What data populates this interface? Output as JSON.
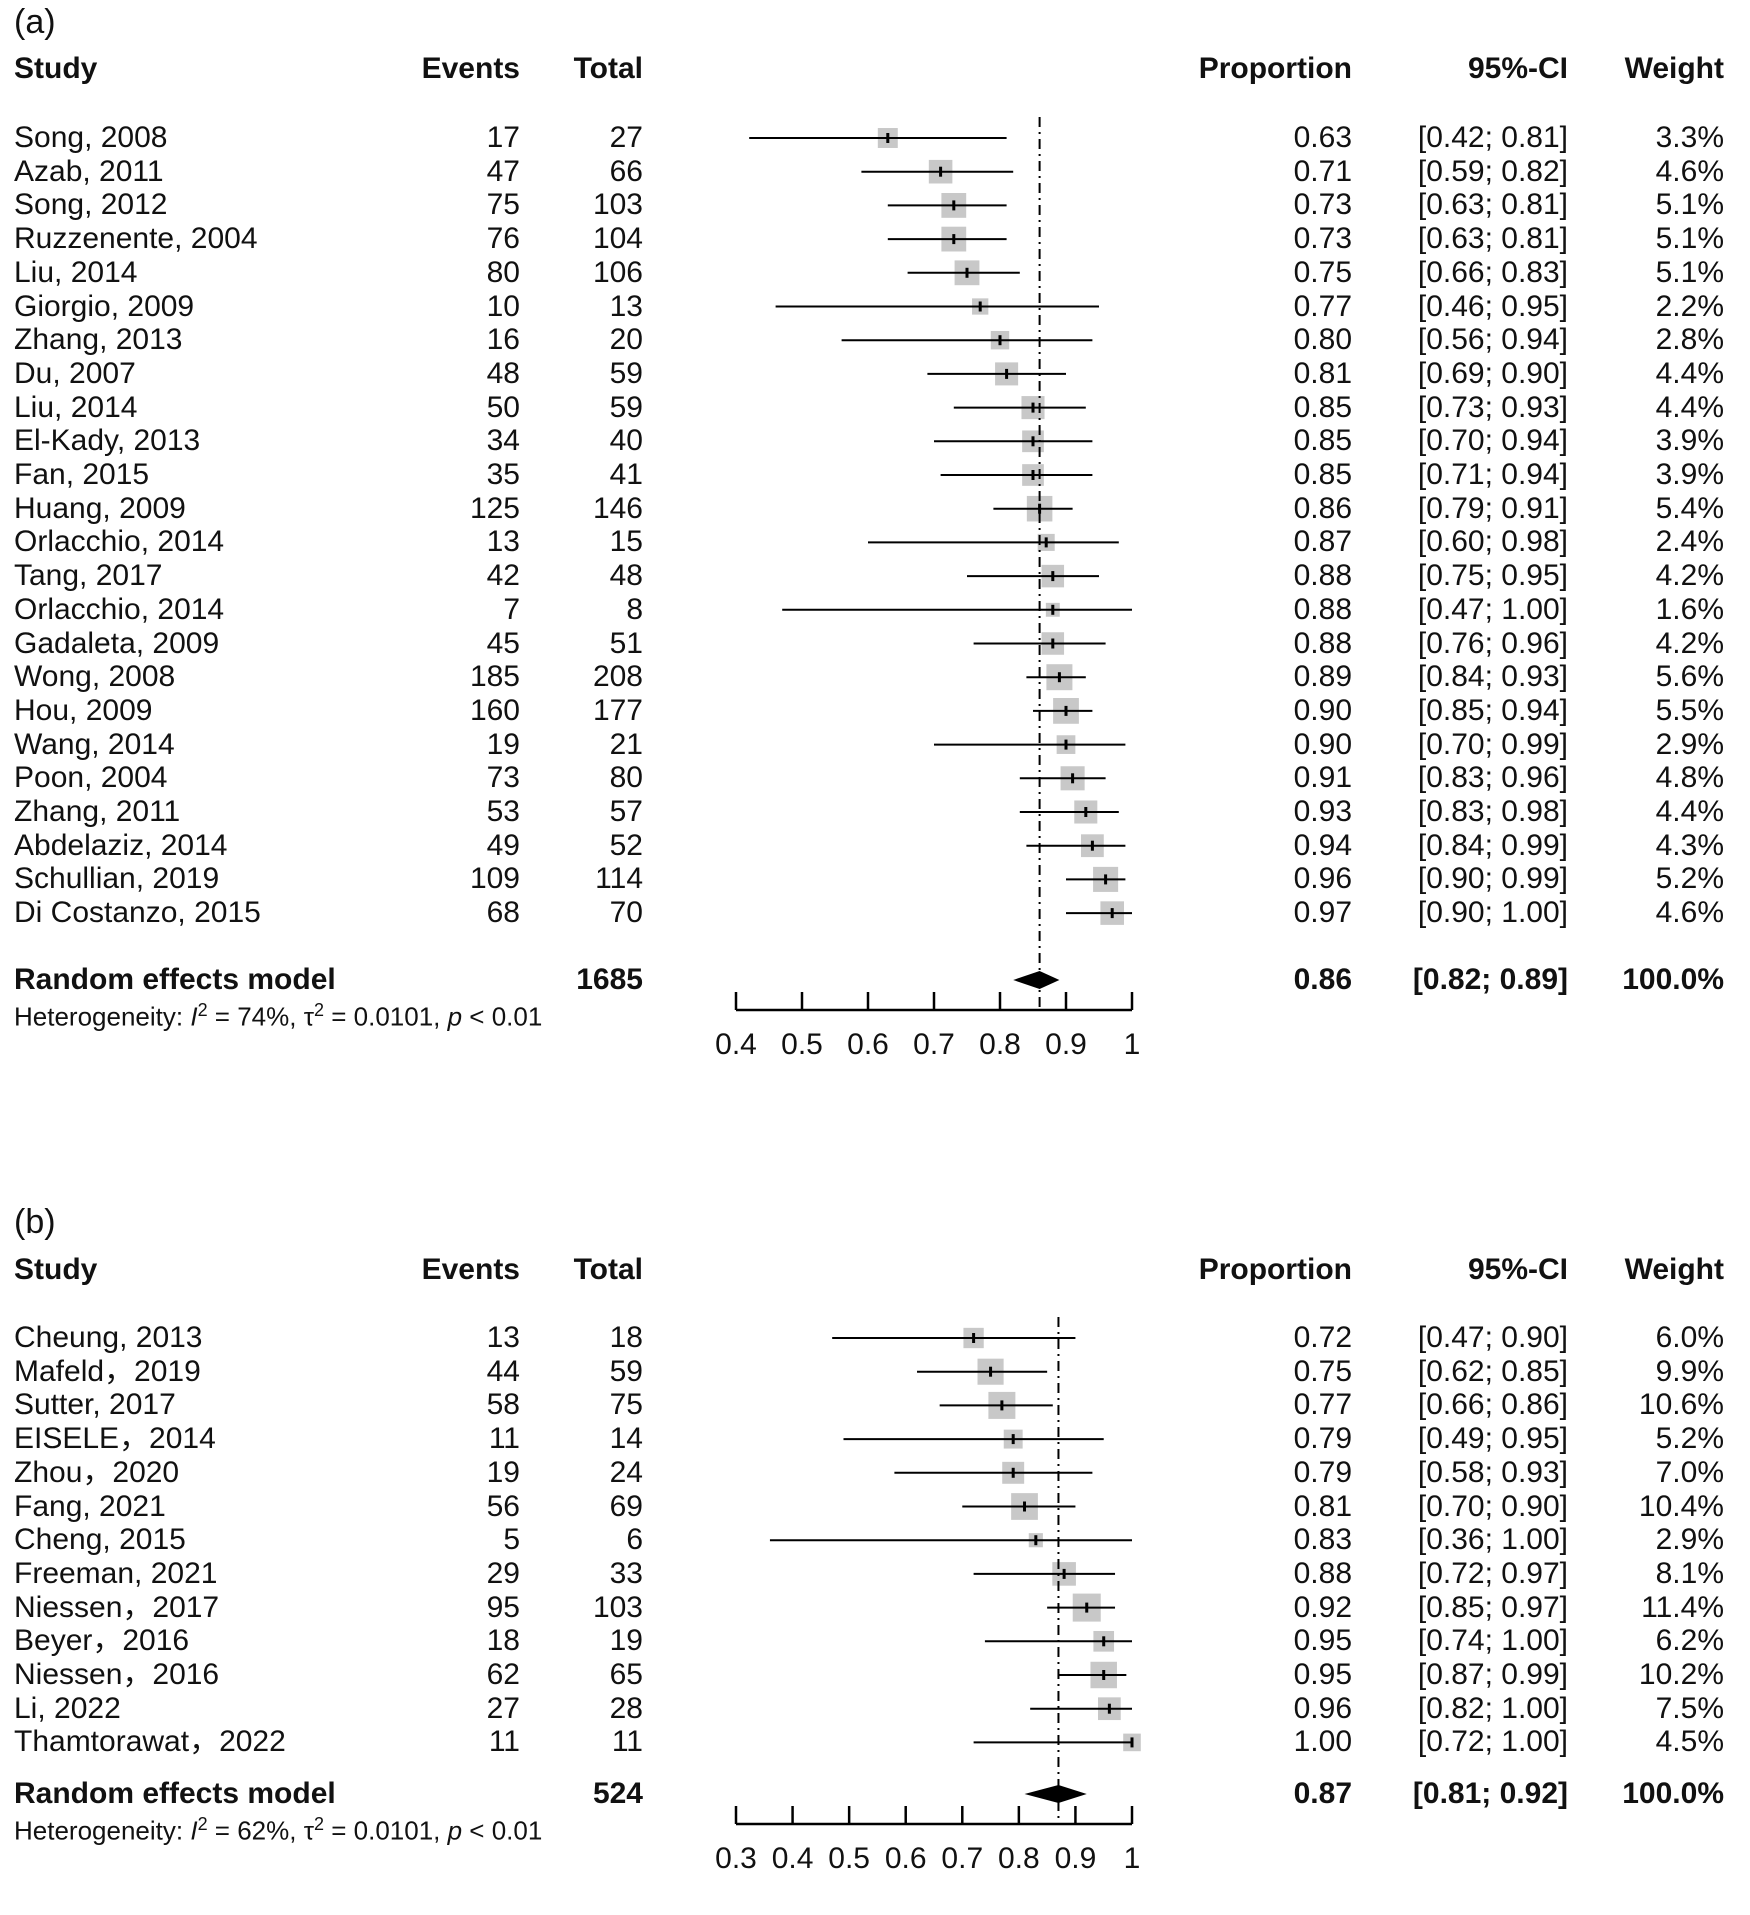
{
  "chart_data": [
    {
      "type": "forest",
      "panel_label": "(a)",
      "headers": {
        "study": "Study",
        "events": "Events",
        "total": "Total",
        "proportion": "Proportion",
        "ci": "95%-CI",
        "weight": "Weight"
      },
      "studies": [
        {
          "study": "Song, 2008",
          "events": "17",
          "total": "27",
          "proportion": "0.63",
          "ci": "[0.42; 0.81]",
          "weight": "3.3%",
          "est": 0.63,
          "lo": 0.42,
          "hi": 0.81,
          "w": 3.3
        },
        {
          "study": "Azab, 2011",
          "events": "47",
          "total": "66",
          "proportion": "0.71",
          "ci": "[0.59; 0.82]",
          "weight": "4.6%",
          "est": 0.71,
          "lo": 0.59,
          "hi": 0.82,
          "w": 4.6
        },
        {
          "study": "Song, 2012",
          "events": "75",
          "total": "103",
          "proportion": "0.73",
          "ci": "[0.63; 0.81]",
          "weight": "5.1%",
          "est": 0.73,
          "lo": 0.63,
          "hi": 0.81,
          "w": 5.1
        },
        {
          "study": "Ruzzenente, 2004",
          "events": "76",
          "total": "104",
          "proportion": "0.73",
          "ci": "[0.63; 0.81]",
          "weight": "5.1%",
          "est": 0.73,
          "lo": 0.63,
          "hi": 0.81,
          "w": 5.1
        },
        {
          "study": "Liu, 2014",
          "events": "80",
          "total": "106",
          "proportion": "0.75",
          "ci": "[0.66; 0.83]",
          "weight": "5.1%",
          "est": 0.75,
          "lo": 0.66,
          "hi": 0.83,
          "w": 5.1
        },
        {
          "study": "Giorgio, 2009",
          "events": "10",
          "total": "13",
          "proportion": "0.77",
          "ci": "[0.46; 0.95]",
          "weight": "2.2%",
          "est": 0.77,
          "lo": 0.46,
          "hi": 0.95,
          "w": 2.2
        },
        {
          "study": "Zhang, 2013",
          "events": "16",
          "total": "20",
          "proportion": "0.80",
          "ci": "[0.56; 0.94]",
          "weight": "2.8%",
          "est": 0.8,
          "lo": 0.56,
          "hi": 0.94,
          "w": 2.8
        },
        {
          "study": "Du, 2007",
          "events": "48",
          "total": "59",
          "proportion": "0.81",
          "ci": "[0.69; 0.90]",
          "weight": "4.4%",
          "est": 0.81,
          "lo": 0.69,
          "hi": 0.9,
          "w": 4.4
        },
        {
          "study": "Liu, 2014",
          "events": "50",
          "total": "59",
          "proportion": "0.85",
          "ci": "[0.73; 0.93]",
          "weight": "4.4%",
          "est": 0.85,
          "lo": 0.73,
          "hi": 0.93,
          "w": 4.4
        },
        {
          "study": "El-Kady, 2013",
          "events": "34",
          "total": "40",
          "proportion": "0.85",
          "ci": "[0.70; 0.94]",
          "weight": "3.9%",
          "est": 0.85,
          "lo": 0.7,
          "hi": 0.94,
          "w": 3.9
        },
        {
          "study": "Fan, 2015",
          "events": "35",
          "total": "41",
          "proportion": "0.85",
          "ci": "[0.71; 0.94]",
          "weight": "3.9%",
          "est": 0.85,
          "lo": 0.71,
          "hi": 0.94,
          "w": 3.9
        },
        {
          "study": "Huang, 2009",
          "events": "125",
          "total": "146",
          "proportion": "0.86",
          "ci": "[0.79; 0.91]",
          "weight": "5.4%",
          "est": 0.86,
          "lo": 0.79,
          "hi": 0.91,
          "w": 5.4
        },
        {
          "study": "Orlacchio, 2014",
          "events": "13",
          "total": "15",
          "proportion": "0.87",
          "ci": "[0.60; 0.98]",
          "weight": "2.4%",
          "est": 0.87,
          "lo": 0.6,
          "hi": 0.98,
          "w": 2.4
        },
        {
          "study": "Tang, 2017",
          "events": "42",
          "total": "48",
          "proportion": "0.88",
          "ci": "[0.75; 0.95]",
          "weight": "4.2%",
          "est": 0.88,
          "lo": 0.75,
          "hi": 0.95,
          "w": 4.2
        },
        {
          "study": "Orlacchio, 2014",
          "events": "7",
          "total": "8",
          "proportion": "0.88",
          "ci": "[0.47; 1.00]",
          "weight": "1.6%",
          "est": 0.88,
          "lo": 0.47,
          "hi": 1.0,
          "w": 1.6
        },
        {
          "study": "Gadaleta, 2009",
          "events": "45",
          "total": "51",
          "proportion": "0.88",
          "ci": "[0.76; 0.96]",
          "weight": "4.2%",
          "est": 0.88,
          "lo": 0.76,
          "hi": 0.96,
          "w": 4.2
        },
        {
          "study": "Wong, 2008",
          "events": "185",
          "total": "208",
          "proportion": "0.89",
          "ci": "[0.84; 0.93]",
          "weight": "5.6%",
          "est": 0.89,
          "lo": 0.84,
          "hi": 0.93,
          "w": 5.6
        },
        {
          "study": "Hou, 2009",
          "events": "160",
          "total": "177",
          "proportion": "0.90",
          "ci": "[0.85; 0.94]",
          "weight": "5.5%",
          "est": 0.9,
          "lo": 0.85,
          "hi": 0.94,
          "w": 5.5
        },
        {
          "study": "Wang, 2014",
          "events": "19",
          "total": "21",
          "proportion": "0.90",
          "ci": "[0.70; 0.99]",
          "weight": "2.9%",
          "est": 0.9,
          "lo": 0.7,
          "hi": 0.99,
          "w": 2.9
        },
        {
          "study": "Poon, 2004",
          "events": "73",
          "total": "80",
          "proportion": "0.91",
          "ci": "[0.83; 0.96]",
          "weight": "4.8%",
          "est": 0.91,
          "lo": 0.83,
          "hi": 0.96,
          "w": 4.8
        },
        {
          "study": "Zhang, 2011",
          "events": "53",
          "total": "57",
          "proportion": "0.93",
          "ci": "[0.83; 0.98]",
          "weight": "4.4%",
          "est": 0.93,
          "lo": 0.83,
          "hi": 0.98,
          "w": 4.4
        },
        {
          "study": "Abdelaziz, 2014",
          "events": "49",
          "total": "52",
          "proportion": "0.94",
          "ci": "[0.84; 0.99]",
          "weight": "4.3%",
          "est": 0.94,
          "lo": 0.84,
          "hi": 0.99,
          "w": 4.3
        },
        {
          "study": "Schullian, 2019",
          "events": "109",
          "total": "114",
          "proportion": "0.96",
          "ci": "[0.90; 0.99]",
          "weight": "5.2%",
          "est": 0.96,
          "lo": 0.9,
          "hi": 0.99,
          "w": 5.2
        },
        {
          "study": "Di Costanzo, 2015",
          "events": "68",
          "total": "70",
          "proportion": "0.97",
          "ci": "[0.90; 1.00]",
          "weight": "4.6%",
          "est": 0.97,
          "lo": 0.9,
          "hi": 1.0,
          "w": 4.6
        }
      ],
      "pooled": {
        "label": "Random effects model",
        "total": "1685",
        "proportion": "0.86",
        "ci": "[0.82; 0.89]",
        "weight": "100.0%",
        "est": 0.86,
        "lo": 0.82,
        "hi": 0.89
      },
      "heterogeneity": {
        "prefix": "Heterogeneity: ",
        "i2_symbol": "I",
        "i2_value": " = 74%, ",
        "tau2_symbol": "τ",
        "tau2_value": " = 0.0101, ",
        "p_symbol": "p",
        "p_value": " < 0.01",
        "sup": "2"
      },
      "xaxis": {
        "min": 0.4,
        "max": 1.0,
        "ticks": [
          0.4,
          0.5,
          0.6,
          0.7,
          0.8,
          0.9,
          1.0
        ],
        "tick_labels": [
          "0.4",
          "0.5",
          "0.6",
          "0.7",
          "0.8",
          "0.9",
          "1"
        ]
      }
    },
    {
      "type": "forest",
      "panel_label": "(b)",
      "headers": {
        "study": "Study",
        "events": "Events",
        "total": "Total",
        "proportion": "Proportion",
        "ci": "95%-CI",
        "weight": "Weight"
      },
      "studies": [
        {
          "study": "Cheung, 2013",
          "events": "13",
          "total": "18",
          "proportion": "0.72",
          "ci": "[0.47; 0.90]",
          "weight": "6.0%",
          "est": 0.72,
          "lo": 0.47,
          "hi": 0.9,
          "w": 6.0
        },
        {
          "study": "Mafeld，2019",
          "events": "44",
          "total": "59",
          "proportion": "0.75",
          "ci": "[0.62; 0.85]",
          "weight": "9.9%",
          "est": 0.75,
          "lo": 0.62,
          "hi": 0.85,
          "w": 9.9
        },
        {
          "study": "Sutter, 2017",
          "events": "58",
          "total": "75",
          "proportion": "0.77",
          "ci": "[0.66; 0.86]",
          "weight": "10.6%",
          "est": 0.77,
          "lo": 0.66,
          "hi": 0.86,
          "w": 10.6
        },
        {
          "study": "EISELE，2014",
          "events": "11",
          "total": "14",
          "proportion": "0.79",
          "ci": "[0.49; 0.95]",
          "weight": "5.2%",
          "est": 0.79,
          "lo": 0.49,
          "hi": 0.95,
          "w": 5.2
        },
        {
          "study": "Zhou，2020",
          "events": "19",
          "total": "24",
          "proportion": "0.79",
          "ci": "[0.58; 0.93]",
          "weight": "7.0%",
          "est": 0.79,
          "lo": 0.58,
          "hi": 0.93,
          "w": 7.0
        },
        {
          "study": "Fang, 2021",
          "events": "56",
          "total": "69",
          "proportion": "0.81",
          "ci": "[0.70; 0.90]",
          "weight": "10.4%",
          "est": 0.81,
          "lo": 0.7,
          "hi": 0.9,
          "w": 10.4
        },
        {
          "study": "Cheng, 2015",
          "events": "5",
          "total": "6",
          "proportion": "0.83",
          "ci": "[0.36; 1.00]",
          "weight": "2.9%",
          "est": 0.83,
          "lo": 0.36,
          "hi": 1.0,
          "w": 2.9
        },
        {
          "study": "Freeman, 2021",
          "events": "29",
          "total": "33",
          "proportion": "0.88",
          "ci": "[0.72; 0.97]",
          "weight": "8.1%",
          "est": 0.88,
          "lo": 0.72,
          "hi": 0.97,
          "w": 8.1
        },
        {
          "study": "Niessen，2017",
          "events": "95",
          "total": "103",
          "proportion": "0.92",
          "ci": "[0.85; 0.97]",
          "weight": "11.4%",
          "est": 0.92,
          "lo": 0.85,
          "hi": 0.97,
          "w": 11.4
        },
        {
          "study": "Beyer，2016",
          "events": "18",
          "total": "19",
          "proportion": "0.95",
          "ci": "[0.74; 1.00]",
          "weight": "6.2%",
          "est": 0.95,
          "lo": 0.74,
          "hi": 1.0,
          "w": 6.2
        },
        {
          "study": "Niessen，2016",
          "events": "62",
          "total": "65",
          "proportion": "0.95",
          "ci": "[0.87; 0.99]",
          "weight": "10.2%",
          "est": 0.95,
          "lo": 0.87,
          "hi": 0.99,
          "w": 10.2
        },
        {
          "study": "Li, 2022",
          "events": "27",
          "total": "28",
          "proportion": "0.96",
          "ci": "[0.82; 1.00]",
          "weight": "7.5%",
          "est": 0.96,
          "lo": 0.82,
          "hi": 1.0,
          "w": 7.5
        },
        {
          "study": "Thamtorawat，2022",
          "events": "11",
          "total": "11",
          "proportion": "1.00",
          "ci": "[0.72; 1.00]",
          "weight": "4.5%",
          "est": 1.0,
          "lo": 0.72,
          "hi": 1.0,
          "w": 4.5
        }
      ],
      "pooled": {
        "label": "Random effects model",
        "total": "524",
        "proportion": "0.87",
        "ci": "[0.81; 0.92]",
        "weight": "100.0%",
        "est": 0.87,
        "lo": 0.81,
        "hi": 0.92
      },
      "heterogeneity": {
        "prefix": "Heterogeneity: ",
        "i2_symbol": "I",
        "i2_value": " = 62%, ",
        "tau2_symbol": "τ",
        "tau2_value": " = 0.0101, ",
        "p_symbol": "p",
        "p_value": " < 0.01",
        "sup": "2"
      },
      "xaxis": {
        "min": 0.3,
        "max": 1.0,
        "ticks": [
          0.3,
          0.4,
          0.5,
          0.6,
          0.7,
          0.8,
          0.9,
          1.0
        ],
        "tick_labels": [
          "0.3",
          "0.4",
          "0.5",
          "0.6",
          "0.7",
          "0.8",
          "0.9",
          "1"
        ]
      }
    }
  ]
}
